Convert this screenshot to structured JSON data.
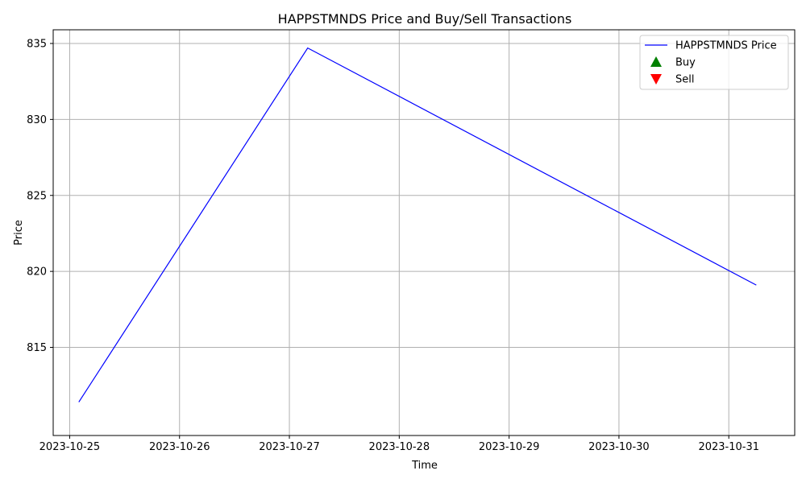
{
  "chart_data": {
    "type": "line",
    "title": "HAPPSTMNDS Price and Buy/Sell Transactions",
    "xlabel": "Time",
    "ylabel": "Price",
    "grid": true,
    "legend_position": "top-right",
    "x_ticks": [
      "2023-10-25",
      "2023-10-26",
      "2023-10-27",
      "2023-10-28",
      "2023-10-29",
      "2023-10-30",
      "2023-10-31"
    ],
    "y_ticks": [
      815,
      820,
      825,
      830,
      835
    ],
    "ylim": [
      809.2,
      835.9
    ],
    "xlim": [
      "2023-10-24T20:24",
      "2023-10-31T14:24"
    ],
    "series": [
      {
        "name": "HAPPSTMNDS Price",
        "kind": "line",
        "color": "#0000ff",
        "points": [
          {
            "x": "2023-10-25T02:00",
            "y": 811.4
          },
          {
            "x": "2023-10-27T04:00",
            "y": 834.7
          },
          {
            "x": "2023-10-31T06:00",
            "y": 819.1
          }
        ]
      },
      {
        "name": "Buy",
        "kind": "marker",
        "marker": "triangle-up",
        "color": "#008000",
        "points": []
      },
      {
        "name": "Sell",
        "kind": "marker",
        "marker": "triangle-down",
        "color": "#ff0000",
        "points": []
      }
    ]
  }
}
